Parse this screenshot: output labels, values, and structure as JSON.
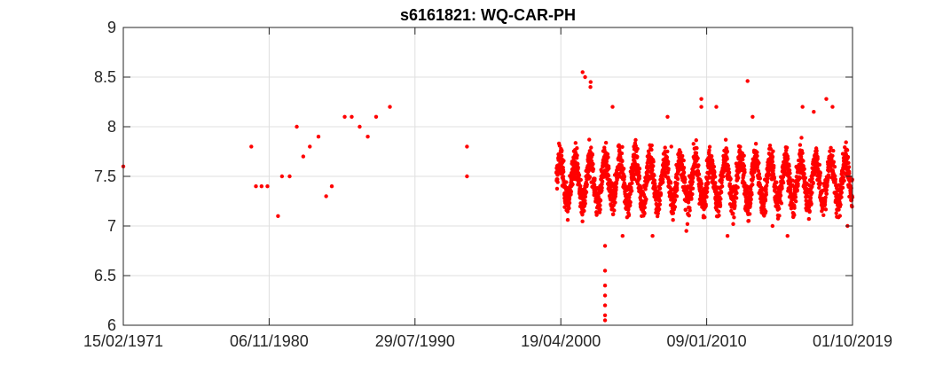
{
  "chart_data": {
    "type": "scatter",
    "title": "s6161821: WQ-CAR-PH",
    "xlabel": "",
    "ylabel": "",
    "xlim": [
      "15/02/1971",
      "01/10/2019"
    ],
    "ylim": [
      6,
      9
    ],
    "x_ticks": [
      "15/02/1971",
      "06/11/1980",
      "29/07/1990",
      "19/04/2000",
      "09/01/2010",
      "01/10/2019"
    ],
    "y_ticks": [
      6,
      6.5,
      7,
      7.5,
      8,
      8.5,
      9
    ],
    "grid": true,
    "marker_color": "#ff0000",
    "series": [
      {
        "points": [
          [
            "15/02/1971",
            7.6
          ],
          [
            "30/08/1979",
            7.8
          ],
          [
            "20/12/1979",
            7.4
          ],
          [
            "05/05/1980",
            7.4
          ],
          [
            "25/09/1980",
            7.4
          ],
          [
            "10/06/1981",
            7.1
          ],
          [
            "15/09/1981",
            7.5
          ],
          [
            "20/03/1982",
            7.5
          ],
          [
            "10/09/1982",
            8.0
          ],
          [
            "15/02/1983",
            7.7
          ],
          [
            "25/07/1983",
            7.8
          ],
          [
            "20/02/1984",
            7.9
          ],
          [
            "25/08/1984",
            7.3
          ],
          [
            "10/01/1985",
            7.4
          ],
          [
            "20/11/1985",
            8.1
          ],
          [
            "10/05/1986",
            8.1
          ],
          [
            "20/11/1986",
            8.0
          ],
          [
            "05/06/1987",
            7.9
          ],
          [
            "25/12/1987",
            8.1
          ],
          [
            "25/11/1988",
            8.2
          ],
          [
            "15/01/1994",
            7.8
          ],
          [
            "15/01/1994",
            7.5
          ]
        ]
      },
      {
        "continuous_record": {
          "start": "01/01/2000",
          "end": "01/10/2019",
          "typical_range": [
            7.0,
            8.0
          ],
          "median": 7.45
        },
        "points": [
          [
            "01/10/2001",
            8.55
          ],
          [
            "01/12/2001",
            8.5
          ],
          [
            "15/04/2002",
            8.45
          ],
          [
            "10/04/2002",
            8.4
          ],
          [
            "01/04/2003",
            6.8
          ],
          [
            "01/04/2003",
            6.55
          ],
          [
            "01/04/2003",
            6.4
          ],
          [
            "01/04/2003",
            6.3
          ],
          [
            "01/04/2003",
            6.2
          ],
          [
            "01/04/2003",
            6.1
          ],
          [
            "01/04/2003",
            6.05
          ],
          [
            "01/10/2003",
            8.2
          ],
          [
            "01/06/2004",
            6.9
          ],
          [
            "01/06/2006",
            6.9
          ],
          [
            "01/06/2007",
            8.1
          ],
          [
            "01/09/2007",
            7.8
          ],
          [
            "01/09/2008",
            6.95
          ],
          [
            "01/09/2009",
            8.28
          ],
          [
            "01/09/2009",
            8.2
          ],
          [
            "01/09/2010",
            8.2
          ],
          [
            "01/06/2011",
            6.9
          ],
          [
            "01/10/2012",
            8.46
          ],
          [
            "01/02/2013",
            8.1
          ],
          [
            "01/06/2014",
            7.0
          ],
          [
            "01/06/2015",
            6.9
          ],
          [
            "01/06/2016",
            8.2
          ],
          [
            "01/03/2017",
            8.15
          ],
          [
            "01/01/2018",
            8.28
          ],
          [
            "01/06/2018",
            8.2
          ],
          [
            "01/06/2019",
            7.0
          ]
        ]
      }
    ]
  }
}
